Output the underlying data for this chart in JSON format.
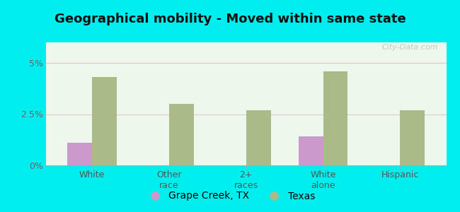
{
  "title": "Geographical mobility - Moved within same state",
  "categories": [
    "White",
    "Other\nrace",
    "2+\nraces",
    "White\nalone",
    "Hispanic"
  ],
  "grape_creek_values": [
    1.1,
    0.0,
    0.0,
    1.4,
    0.0
  ],
  "texas_values": [
    4.3,
    3.0,
    2.7,
    4.6,
    2.7
  ],
  "grape_creek_color": "#cc99cc",
  "texas_color": "#aabb88",
  "background_color": "#00eeee",
  "plot_bg": "#edf7ec",
  "ylim": [
    0,
    6.0
  ],
  "yticks": [
    0,
    2.5,
    5.0
  ],
  "ytick_labels": [
    "0%",
    "2.5%",
    "5%"
  ],
  "bar_width": 0.32,
  "legend_labels": [
    "Grape Creek, TX",
    "Texas"
  ],
  "watermark": "City-Data.com",
  "title_fontsize": 13,
  "tick_fontsize": 9,
  "legend_fontsize": 10,
  "gridline_color": "#ddcccc",
  "spine_color": "#aaaaaa"
}
